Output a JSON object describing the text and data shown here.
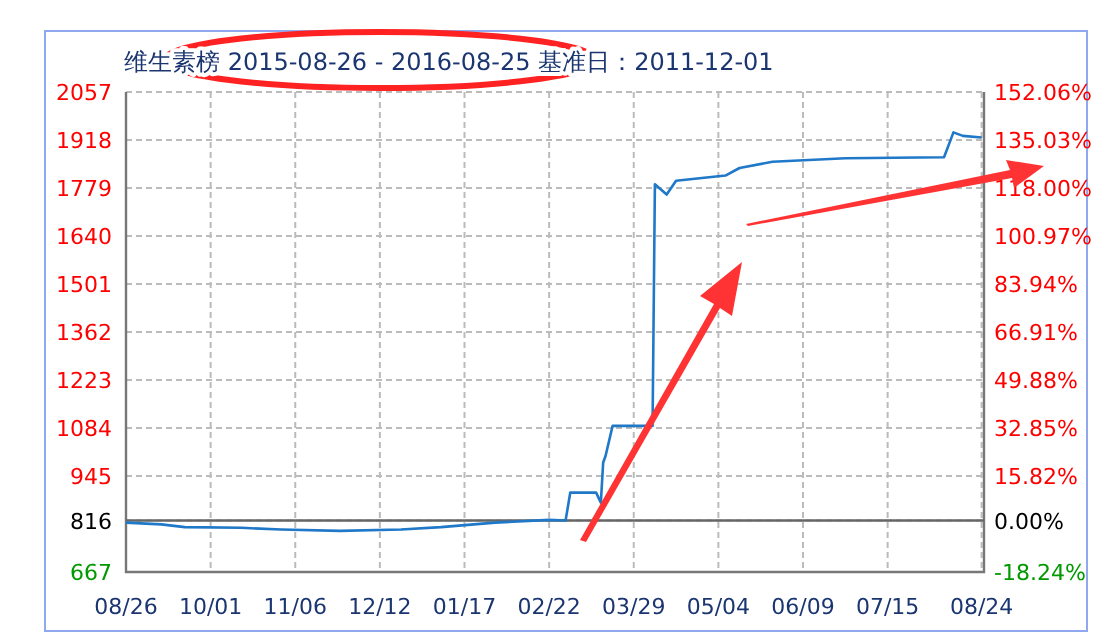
{
  "chart_data": {
    "type": "line",
    "title": "维生素榜 2015-08-26 - 2016-08-25  基准日：2011-12-01",
    "x": [
      "2015-08-26",
      "2015-09-10",
      "2015-09-20",
      "2015-10-14",
      "2015-10-31",
      "2015-11-25",
      "2015-12-21",
      "2016-01-07",
      "2016-01-30",
      "2016-02-22",
      "2016-02-29",
      "2016-03-02",
      "2016-03-13",
      "2016-03-15",
      "2016-03-16",
      "2016-03-17",
      "2016-03-20",
      "2016-03-31",
      "2016-04-06",
      "2016-04-07",
      "2016-04-12",
      "2016-04-16",
      "2016-05-07",
      "2016-05-13",
      "2016-05-27",
      "2016-06-27",
      "2016-08-08",
      "2016-08-12",
      "2016-08-16",
      "2016-08-24"
    ],
    "series": [
      {
        "color": "#1f78c8",
        "values": [
          810,
          805,
          797,
          795,
          790,
          786,
          790,
          797,
          810,
          818,
          816,
          897,
          897,
          868,
          984,
          1003,
          1090,
          1090,
          1090,
          1790,
          1760,
          1800,
          1815,
          1837,
          1855,
          1865,
          1868,
          1940,
          1930,
          1925
        ]
      }
    ],
    "xlim": [
      "2015-08-26",
      "2016-08-25"
    ],
    "xticks": [
      {
        "value": "2015-08-26",
        "label": "08/26"
      },
      {
        "value": "2015-10-01",
        "label": "10/01"
      },
      {
        "value": "2015-11-06",
        "label": "11/06"
      },
      {
        "value": "2015-12-12",
        "label": "12/12"
      },
      {
        "value": "2016-01-17",
        "label": "01/17"
      },
      {
        "value": "2016-02-22",
        "label": "02/22"
      },
      {
        "value": "2016-03-29",
        "label": "03/29"
      },
      {
        "value": "2016-05-04",
        "label": "05/04"
      },
      {
        "value": "2016-06-09",
        "label": "06/09"
      },
      {
        "value": "2016-07-15",
        "label": "07/15"
      },
      {
        "value": "2016-08-24",
        "label": "08/24"
      }
    ],
    "ylim": [
      667,
      2057
    ],
    "yticks": [
      667,
      816,
      945,
      1084,
      1223,
      1362,
      1501,
      1640,
      1779,
      1918,
      2057
    ],
    "y2lim": [
      -18.24,
      152.06
    ],
    "y2ticks": [
      {
        "value": -18.24,
        "label": "-18.24%"
      },
      {
        "value": 0,
        "label": "0.00%"
      },
      {
        "value": 15.82,
        "label": "15.82%"
      },
      {
        "value": 32.85,
        "label": "32.85%"
      },
      {
        "value": 49.88,
        "label": "49.88%"
      },
      {
        "value": 66.91,
        "label": "66.91%"
      },
      {
        "value": 83.94,
        "label": "83.94%"
      },
      {
        "value": 100.97,
        "label": "100.97%"
      },
      {
        "value": 118,
        "label": "118.00%"
      },
      {
        "value": 135.03,
        "label": "135.03%"
      },
      {
        "value": 152.06,
        "label": "152.06%"
      }
    ],
    "ref_lines": [
      {
        "axis": "y",
        "value": 816,
        "color": "#666666"
      }
    ],
    "grid": true,
    "line_style": "solid"
  }
}
